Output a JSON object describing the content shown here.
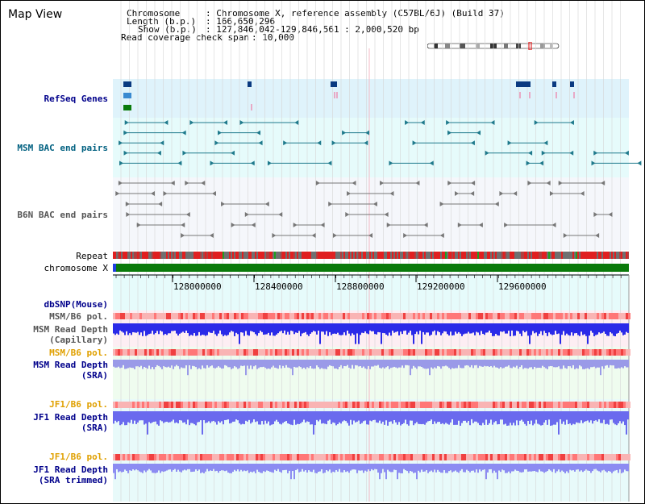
{
  "title": "Map View",
  "header": {
    "chromosome_label": "Chromosome",
    "chromosome_value": ": Chromosome X, reference assembly (C57BL/6J) (Build 37)",
    "length_label": "Length (b.p.)",
    "length_value": ": 166,650,296",
    "show_label": "Show (b.p.)",
    "show_value": ": 127,846,042-129,846,561 : 2,000,520 bp",
    "coverage_label": "Read coverage check span",
    "coverage_value": ": 10,000"
  },
  "tracks": {
    "refseq": "RefSeq Genes",
    "msm_bac": "MSM BAC end pairs",
    "b6n_bac": "B6N BAC end pairs",
    "repeat": "Repeat",
    "chromosome": "chromosome X",
    "dbsnp": "dbSNP(Mouse)",
    "msm_b6_pol_1": "MSM/B6 pol.",
    "msm_depth_cap_1": "MSM Read Depth",
    "msm_depth_cap_2": "(Capillary)",
    "msm_b6_pol_2": "MSM/B6 pol.",
    "msm_depth_sra_1": "MSM Read Depth",
    "msm_depth_sra_2": "(SRA)",
    "jf1_b6_pol_1": "JF1/B6 pol.",
    "jf1_depth_sra_1": "JF1 Read Depth",
    "jf1_depth_sra_2": "(SRA)",
    "jf1_b6_pol_2": "JF1/B6 pol.",
    "jf1_depth_trim_1": "JF1 Read Depth",
    "jf1_depth_trim_2": "(SRA trimmed)"
  },
  "axis": {
    "ticks": [
      "128000000",
      "128400000",
      "128800000",
      "129200000",
      "129600000"
    ]
  },
  "colors": {
    "blue_label": "#00008b",
    "teal_label": "#006080",
    "orange_label": "#e0a000",
    "gray_label": "#555555",
    "refseq_bg": "#dff3fb",
    "msm_bg": "#e6fbfb",
    "b6n_bg": "#f5f7fb",
    "capillary_bg": "#fdeef3",
    "sra_bg": "#effcef",
    "jf1_bg": "#e8fafa",
    "depth_dark": "#2a2ae8",
    "depth_light": "#8c8cf2",
    "polymorph": "#f8a5a5",
    "chrom_green": "#0a7a0a"
  }
}
